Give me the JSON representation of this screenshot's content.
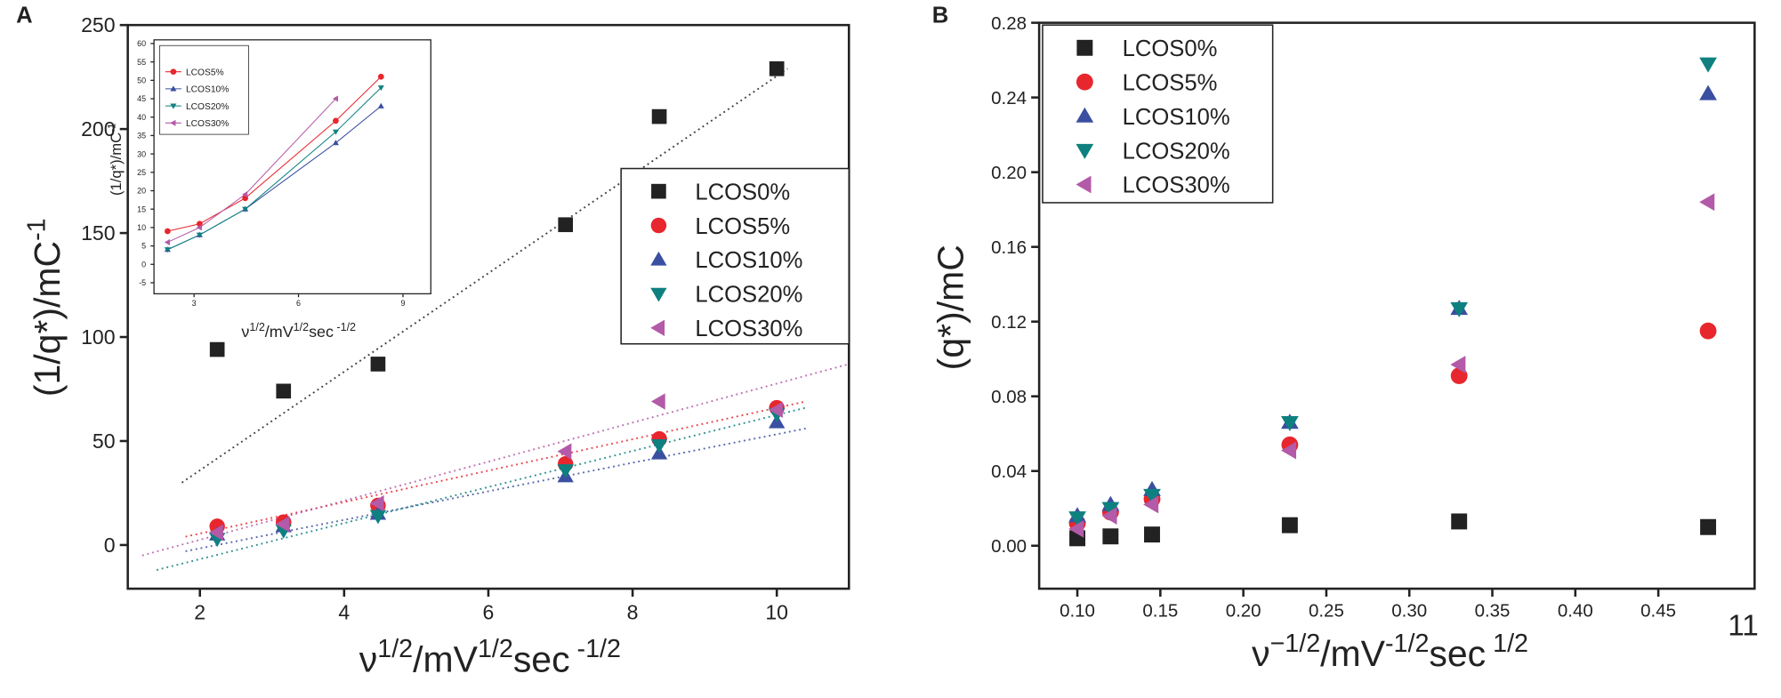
{
  "chart_data": [
    {
      "type": "scatter",
      "panel_label": "A",
      "x_label": [
        "ν",
        "1/2",
        "/mV",
        "1/2",
        "sec",
        " -1/2"
      ],
      "y_label": [
        "(1/q*)/mC",
        "-1"
      ],
      "xlim": [
        1,
        11
      ],
      "ylim": [
        -21,
        250
      ],
      "xticks": [
        2,
        4,
        6,
        8,
        10
      ],
      "yticks": [
        0,
        50,
        100,
        150,
        200,
        250
      ],
      "x": [
        2.24,
        3.16,
        4.47,
        7.07,
        8.37,
        10
      ],
      "series": [
        {
          "name": "LCOS0%",
          "color": "#222222",
          "marker": "square",
          "values": [
            94,
            74,
            87,
            154,
            206,
            229
          ],
          "fit": {
            "x": [
              1.75,
              10.15
            ],
            "y": [
              30,
              229
            ]
          }
        },
        {
          "name": "LCOS5%",
          "color": "#e8262d",
          "marker": "circle",
          "values": [
            9,
            11,
            19,
            39,
            51,
            66
          ],
          "fit": {
            "x": [
              1.8,
              10.4
            ],
            "y": [
              4,
              69
            ]
          }
        },
        {
          "name": "LCOS10%",
          "color": "#3b4fa0",
          "marker": "triangle-up",
          "values": [
            5,
            9,
            15,
            33,
            44,
            59
          ],
          "fit": {
            "x": [
              1.8,
              10.4
            ],
            "y": [
              -3,
              56
            ]
          }
        },
        {
          "name": "LCOS20%",
          "color": "#0f8080",
          "marker": "triangle-down",
          "values": [
            3,
            7,
            14,
            36,
            48,
            63
          ],
          "fit": {
            "x": [
              1.4,
              10.4
            ],
            "y": [
              -12,
              66
            ]
          }
        },
        {
          "name": "LCOS30%",
          "color": "#b35aa8",
          "marker": "triangle-left",
          "values": [
            6,
            10,
            20,
            45,
            69,
            65
          ],
          "fit": {
            "x": [
              1.2,
              11
            ],
            "y": [
              -5,
              87
            ]
          }
        }
      ]
    },
    {
      "type": "scatter",
      "lines": true,
      "x_label": [
        "ν",
        "1/2",
        "/mV",
        "1/2",
        "sec",
        " -1/2"
      ],
      "y_label": [
        "(1/q*)/mC",
        "-1"
      ],
      "xlim": [
        1.85,
        9.8
      ],
      "ylim": [
        -8,
        61
      ],
      "xticks": [
        3,
        6,
        9
      ],
      "yticks": [
        -5,
        0,
        5,
        10,
        15,
        20,
        25,
        30,
        35,
        40,
        45,
        50,
        55,
        60
      ],
      "x": [
        2.24,
        3.16,
        4.47,
        7.07,
        8.37
      ],
      "series": [
        {
          "name": "LCOS5%",
          "color": "#e8262d",
          "marker": "circle",
          "values": [
            9,
            11,
            18,
            39,
            51
          ]
        },
        {
          "name": "LCOS10%",
          "color": "#3b4fa0",
          "marker": "triangle-up",
          "values": [
            4,
            8,
            15,
            33,
            43
          ]
        },
        {
          "name": "LCOS20%",
          "color": "#0f8080",
          "marker": "triangle-down",
          "values": [
            4,
            8,
            15,
            36,
            48
          ]
        },
        {
          "name": "LCOS30%",
          "color": "#b35aa8",
          "marker": "triangle-left",
          "values": [
            6,
            10,
            19,
            45,
            null
          ]
        }
      ]
    },
    {
      "type": "scatter",
      "panel_label": "B",
      "annotation": "11",
      "x_label": [
        "ν",
        "−1/2",
        "/mV",
        "-1/2",
        "sec",
        " 1/2"
      ],
      "y_label": [
        "(q*)/mC"
      ],
      "xlim": [
        0.077,
        0.508
      ],
      "ylim": [
        -0.023,
        0.28
      ],
      "xticks": [
        {
          "value": 0.1,
          "label": "0.10"
        },
        0.15,
        {
          "value": 0.2,
          "label": "0.20"
        },
        0.25,
        {
          "value": 0.3,
          "label": "0.30"
        },
        0.35,
        {
          "value": 0.4,
          "label": "0.40"
        },
        0.45
      ],
      "yticks": [
        {
          "value": 0,
          "label": "0.00"
        },
        0.04,
        0.08,
        0.12,
        0.16,
        {
          "value": 0.2,
          "label": "0.20"
        },
        0.24,
        0.28
      ],
      "x": [
        0.1,
        0.12,
        0.145,
        0.228,
        0.33,
        0.48
      ],
      "series": [
        {
          "name": "LCOS0%",
          "color": "#222222",
          "marker": "square",
          "values": [
            0.004,
            0.005,
            0.006,
            0.011,
            0.013,
            0.01
          ]
        },
        {
          "name": "LCOS5%",
          "color": "#e8262d",
          "marker": "circle",
          "values": [
            0.012,
            0.018,
            0.025,
            0.054,
            0.091,
            0.115
          ]
        },
        {
          "name": "LCOS10%",
          "color": "#3b4fa0",
          "marker": "triangle-up",
          "values": [
            0.016,
            0.022,
            0.03,
            0.066,
            0.127,
            0.242
          ]
        },
        {
          "name": "LCOS20%",
          "color": "#0f8080",
          "marker": "triangle-down",
          "values": [
            0.015,
            0.02,
            0.027,
            0.066,
            0.127,
            0.258
          ]
        },
        {
          "name": "LCOS30%",
          "color": "#b35aa8",
          "marker": "triangle-left",
          "values": [
            0.009,
            0.016,
            0.022,
            0.051,
            0.097,
            0.184
          ]
        }
      ]
    }
  ]
}
